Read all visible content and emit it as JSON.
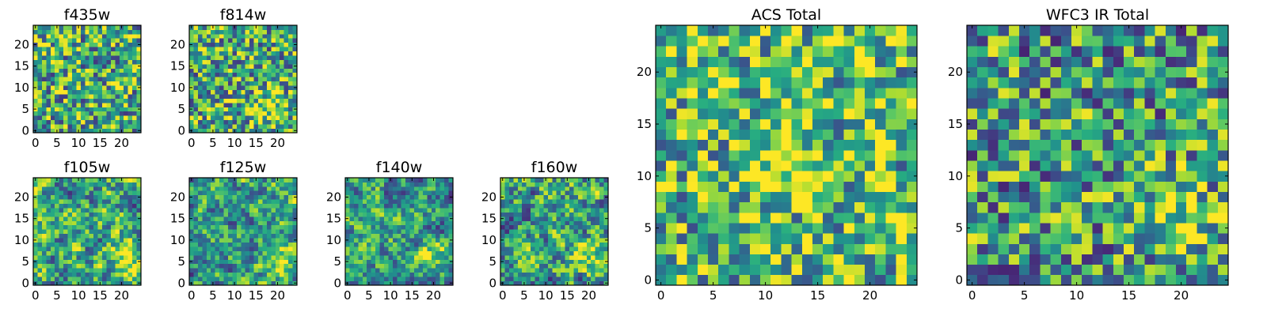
{
  "figure": {
    "background": "#ffffff",
    "colormap": "viridis",
    "frame_color": "#000000"
  },
  "chart_data": [
    {
      "type": "heatmap",
      "title": "f435w",
      "grid_size": 25,
      "xticks": [
        0,
        5,
        10,
        15,
        20
      ],
      "yticks": [
        0,
        5,
        10,
        15,
        20
      ],
      "xlim": [
        0,
        25
      ],
      "ylim": [
        0,
        25
      ],
      "seed": 11,
      "smooth": 0,
      "bias": 0.05,
      "hot_spot": null
    },
    {
      "type": "heatmap",
      "title": "f814w",
      "grid_size": 25,
      "xticks": [
        0,
        5,
        10,
        15,
        20
      ],
      "yticks": [
        0,
        5,
        10,
        15,
        20
      ],
      "xlim": [
        0,
        25
      ],
      "ylim": [
        0,
        25
      ],
      "seed": 23,
      "smooth": 0,
      "bias": 0.05,
      "hot_spot": [
        18,
        5
      ]
    },
    {
      "type": "heatmap",
      "title": "f105w",
      "grid_size": 25,
      "xticks": [
        0,
        5,
        10,
        15,
        20
      ],
      "yticks": [
        0,
        5,
        10,
        15,
        20
      ],
      "xlim": [
        0,
        25
      ],
      "ylim": [
        0,
        25
      ],
      "seed": 37,
      "smooth": 1,
      "bias": 0.02,
      "hot_spot": [
        21,
        6
      ]
    },
    {
      "type": "heatmap",
      "title": "f125w",
      "grid_size": 25,
      "xticks": [
        0,
        5,
        10,
        15,
        20
      ],
      "yticks": [
        0,
        5,
        10,
        15,
        20
      ],
      "xlim": [
        0,
        25
      ],
      "ylim": [
        0,
        25
      ],
      "seed": 41,
      "smooth": 1,
      "bias": 0.0,
      "hot_spot": [
        20,
        6
      ]
    },
    {
      "type": "heatmap",
      "title": "f140w",
      "grid_size": 25,
      "xticks": [
        0,
        5,
        10,
        15,
        20
      ],
      "yticks": [
        0,
        5,
        10,
        15,
        20
      ],
      "xlim": [
        0,
        25
      ],
      "ylim": [
        0,
        25
      ],
      "seed": 53,
      "smooth": 1,
      "bias": 0.0,
      "hot_spot": [
        21,
        7
      ]
    },
    {
      "type": "heatmap",
      "title": "f160w",
      "grid_size": 25,
      "xticks": [
        0,
        5,
        10,
        15,
        20
      ],
      "yticks": [
        0,
        5,
        10,
        15,
        20
      ],
      "xlim": [
        0,
        25
      ],
      "ylim": [
        0,
        25
      ],
      "seed": 67,
      "smooth": 1,
      "bias": 0.0,
      "hot_spot": [
        21,
        6
      ]
    },
    {
      "type": "heatmap",
      "title": "ACS Total",
      "grid_size": 25,
      "xticks": [
        0,
        5,
        10,
        15,
        20
      ],
      "yticks": [
        0,
        5,
        10,
        15,
        20
      ],
      "xlim": [
        0,
        25
      ],
      "ylim": [
        0,
        25
      ],
      "seed": 79,
      "smooth": 0,
      "bias": 0.12,
      "hot_spot": [
        12,
        11
      ]
    },
    {
      "type": "heatmap",
      "title": "WFC3 IR Total",
      "grid_size": 25,
      "xticks": [
        0,
        5,
        10,
        15,
        20
      ],
      "yticks": [
        0,
        5,
        10,
        15,
        20
      ],
      "xlim": [
        0,
        25
      ],
      "ylim": [
        0,
        25
      ],
      "seed": 97,
      "smooth": 0,
      "bias": -0.02,
      "hot_spot": [
        20,
        6
      ]
    }
  ]
}
